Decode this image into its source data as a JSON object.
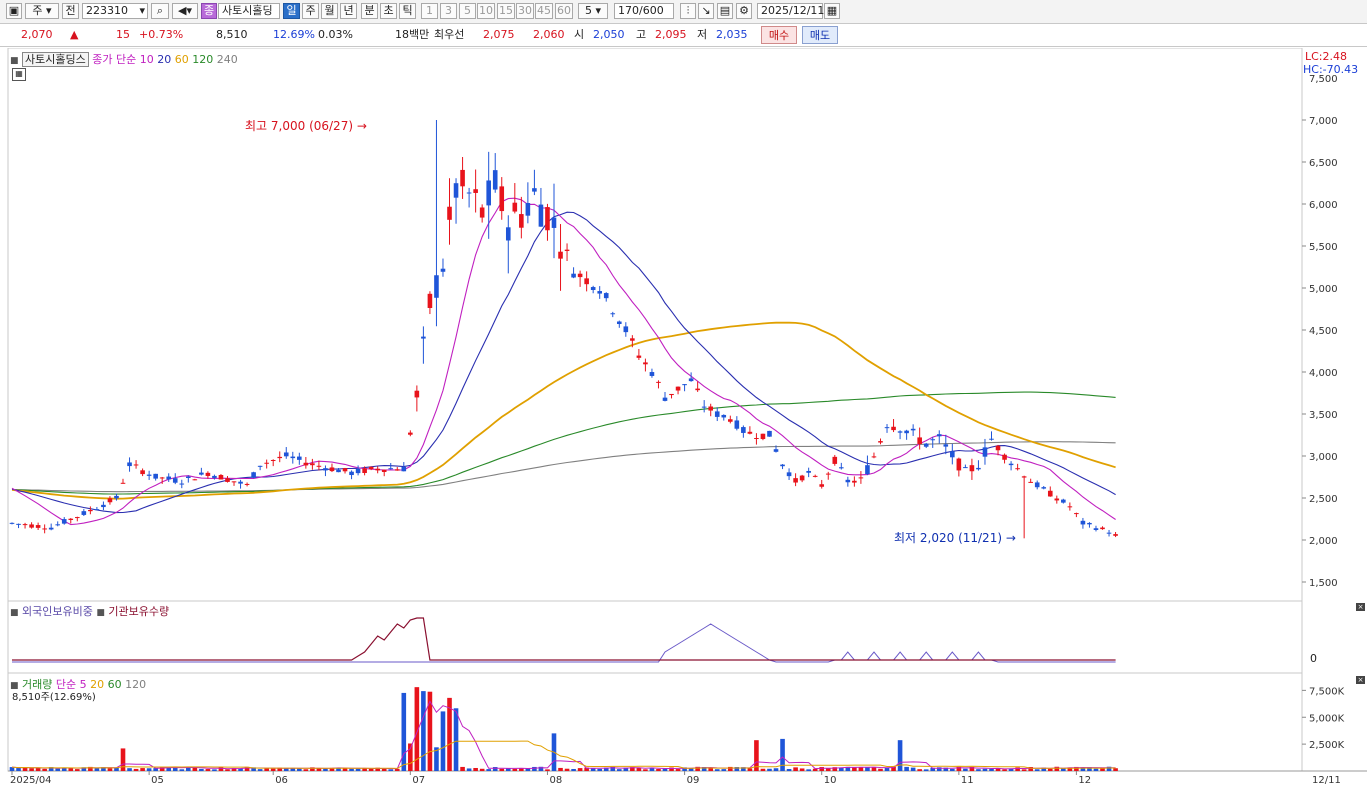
{
  "toolbar": {
    "market": "주",
    "all": "전",
    "code": "223310",
    "name_badge": "종",
    "stock_name": "사토시홀딩",
    "period_tabs": [
      "일",
      "주",
      "월",
      "년",
      "분",
      "초",
      "틱"
    ],
    "minute_buttons": [
      "1",
      "3",
      "5",
      "10",
      "15",
      "30",
      "45",
      "60"
    ],
    "count_select": "5",
    "range": "170/600",
    "date": "2025/12/11"
  },
  "quote": {
    "price": "2,070",
    "change_arrow": "▲",
    "change": "15",
    "change_pct": "+0.73%",
    "volume": "8,510",
    "turnover_pct": "12.69%",
    "ratio": "0.03%",
    "amount": "18백만",
    "best_label": "최우선",
    "best_ask": "2,075",
    "best_bid": "2,060",
    "open_label": "시",
    "open": "2,050",
    "high_label": "고",
    "high": "2,095",
    "low_label": "저",
    "low": "2,035",
    "buy_button": "매수",
    "sell_button": "매도"
  },
  "price_panel": {
    "title": "사토시홀딩스",
    "legend": [
      {
        "text": "종가 단순 10",
        "color": "#c020c0"
      },
      {
        "text": "20",
        "color": "#2a2fb0"
      },
      {
        "text": "60",
        "color": "#e0a000"
      },
      {
        "text": "120",
        "color": "#2a8a2a"
      },
      {
        "text": "240",
        "color": "#808080"
      }
    ],
    "lc_label": "LC:2.48",
    "hc_label": "HC:-70.43",
    "max_annotation": "최고 7,000 (06/27)",
    "min_annotation": "최저 2,020 (11/21)",
    "y_ticks": [
      "7,000",
      "6,500",
      "6,000",
      "5,500",
      "5,000",
      "4,500",
      "4,000",
      "3,500",
      "3,000",
      "2,500",
      "2,000",
      "1,500"
    ],
    "y_ticks_partial": "7,500"
  },
  "investor_panel": {
    "legend_foreign": "외국인보유비중",
    "legend_inst": "기관보유수량",
    "y_tick": "0"
  },
  "volume_panel": {
    "legend": [
      {
        "text": "거래량",
        "color": "#2a8a2a"
      },
      {
        "text": "단순 5",
        "color": "#c020c0"
      },
      {
        "text": "20",
        "color": "#e0a000"
      },
      {
        "text": "60",
        "color": "#2a8a2a"
      },
      {
        "text": "120",
        "color": "#808080"
      }
    ],
    "current": "8,510주(12.69%)",
    "y_ticks": [
      "7,500K",
      "5,000K",
      "2,500K"
    ]
  },
  "x_axis": {
    "labels": [
      "2025/04",
      "05",
      "06",
      "07",
      "08",
      "09",
      "10",
      "11",
      "12"
    ],
    "right_label": "12/11"
  },
  "colors": {
    "up": "#e8131b",
    "down": "#1f55d8",
    "ma10": "#c020c0",
    "ma20": "#2a2fb0",
    "ma60": "#e0a000",
    "ma120": "#2a8a2a",
    "ma240": "#808080"
  }
}
